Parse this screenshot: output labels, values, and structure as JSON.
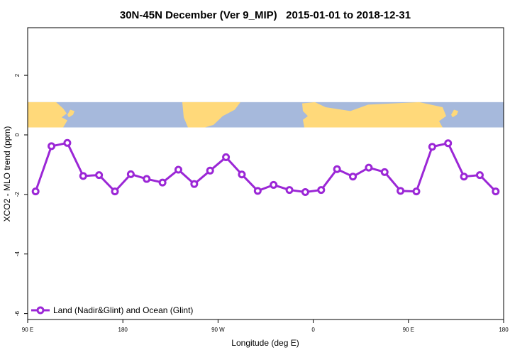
{
  "chart_data": {
    "type": "line",
    "title": "30N-45N December (Ver 9_MIP)   2015-01-01 to 2018-12-31",
    "xlabel": "Longitude (deg E)",
    "ylabel": "XCO2 - MLO trend (ppm)",
    "xlim": [
      90,
      540
    ],
    "ylim": [
      -6.2,
      3.6
    ],
    "x_ticks": [
      {
        "value": 90,
        "label": "90 E"
      },
      {
        "value": 180,
        "label": "180"
      },
      {
        "value": 270,
        "label": "90 W"
      },
      {
        "value": 360,
        "label": "0"
      },
      {
        "value": 450,
        "label": "90 E"
      },
      {
        "value": 540,
        "label": "180"
      }
    ],
    "y_ticks": [
      {
        "value": 2,
        "label": "2"
      },
      {
        "value": 0,
        "label": "0"
      },
      {
        "value": -2,
        "label": "-2"
      },
      {
        "value": -4,
        "label": "-4"
      },
      {
        "value": -6,
        "label": "-6"
      }
    ],
    "map_strip": {
      "y_top": 1.1,
      "y_bottom": 0.25,
      "ocean_color": "#a6b9dc",
      "land_color": "#ffd97a"
    },
    "series": [
      {
        "name": "Land (Nadir&Glint) and Ocean (Glint)",
        "color": "#9b27d6",
        "x": [
          97.5,
          112.5,
          127.5,
          142.5,
          157.5,
          172.5,
          187.5,
          202.5,
          217.5,
          232.5,
          247.5,
          262.5,
          277.5,
          292.5,
          307.5,
          322.5,
          337.5,
          352.5,
          367.5,
          382.5,
          397.5,
          412.5,
          427.5,
          442.5,
          457.5,
          472.5,
          487.5,
          502.5,
          517.5,
          532.5
        ],
        "values": [
          -1.9,
          -0.38,
          -0.27,
          -1.38,
          -1.35,
          -1.9,
          -1.32,
          -1.48,
          -1.6,
          -1.17,
          -1.65,
          -1.2,
          -0.75,
          -1.33,
          -1.88,
          -1.68,
          -1.85,
          -1.92,
          -1.85,
          -1.15,
          -1.4,
          -1.1,
          -1.25,
          -1.88,
          -1.9,
          -0.4,
          -0.28,
          -1.4,
          -1.35,
          -1.9
        ]
      }
    ],
    "legend": {
      "position": "bottom-left"
    }
  }
}
